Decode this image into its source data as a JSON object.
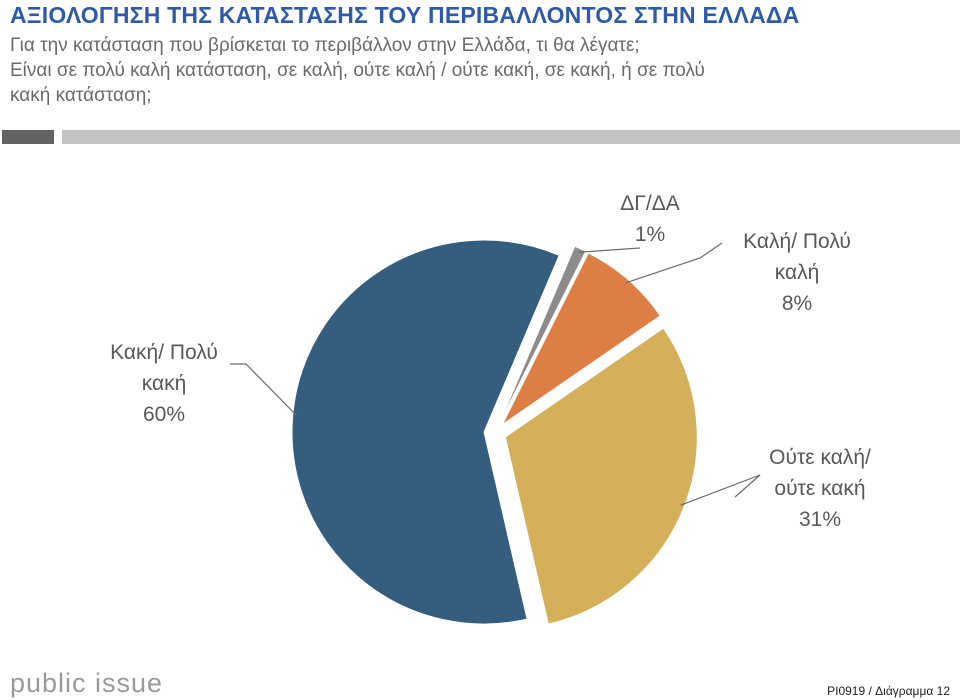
{
  "header": {
    "title": "ΑΞΙΟΛΟΓΗΣΗ ΤΗΣ ΚΑΤΑΣΤΑΣΗΣ ΤΟΥ ΠΕΡΙΒΑΛΛΟΝΤΟΣ ΣΤΗΝ ΕΛΛΑΔΑ",
    "question_lines": [
      "Για την κατάσταση που βρίσκεται το περιβάλλον στην Ελλάδα, τι θα λέγατε;",
      "Είναι σε πολύ καλή κατάσταση, σε καλή, ούτε καλή / ούτε κακή, σε κακή, ή σε πολύ",
      "κακή κατάσταση;"
    ]
  },
  "chart_data": {
    "type": "pie",
    "title": "",
    "slices": [
      {
        "label_lines": [
          "ΔΓ/ΔΑ"
        ],
        "value": 1,
        "value_label": "1%",
        "color": "#8c8c8c"
      },
      {
        "label_lines": [
          "Καλή/ Πολύ",
          "καλή"
        ],
        "value": 8,
        "value_label": "8%",
        "color": "#dd7f45"
      },
      {
        "label_lines": [
          "Ούτε καλή/",
          "ούτε κακή"
        ],
        "value": 31,
        "value_label": "31%",
        "color": "#d5b05b"
      },
      {
        "label_lines": [
          "Κακή/ Πολύ",
          "κακή"
        ],
        "value": 60,
        "value_label": "60%",
        "color": "#355d7e"
      }
    ],
    "slice_order": "clockwise from top",
    "exploded": true
  },
  "footer": {
    "logo_text": "public issue",
    "caption": "PI0919 / Διάγραμμα 12"
  }
}
